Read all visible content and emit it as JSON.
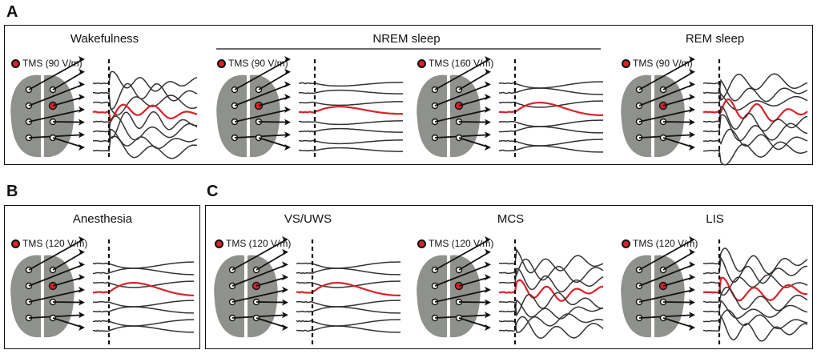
{
  "panels": {
    "A": {
      "letter": "A"
    },
    "B": {
      "letter": "B"
    },
    "C": {
      "letter": "C"
    }
  },
  "group_label": "NREM sleep",
  "conditions": [
    {
      "title": "Wakefulness",
      "tms": "TMS (90 V/m)",
      "pattern": "complex",
      "seed": 3
    },
    {
      "title": "",
      "tms": "TMS (90 V/m)",
      "pattern": "simple_small",
      "seed": 5
    },
    {
      "title": "",
      "tms": "TMS (160 V/m)",
      "pattern": "simple_large",
      "seed": 7
    },
    {
      "title": "REM sleep",
      "tms": "TMS (90 V/m)",
      "pattern": "complex",
      "seed": 11
    },
    {
      "title": "Anesthesia",
      "tms": "TMS (120 V/m)",
      "pattern": "simple_large",
      "seed": 13
    },
    {
      "title": "VS/UWS",
      "tms": "TMS (120 V/m)",
      "pattern": "simple_large",
      "seed": 17
    },
    {
      "title": "MCS",
      "tms": "TMS (120 V/m)",
      "pattern": "complex",
      "seed": 19
    },
    {
      "title": "LIS",
      "tms": "TMS (120 V/m)",
      "pattern": "complex",
      "seed": 23
    }
  ],
  "colors": {
    "brain": "#8f918c",
    "stim": "#d8232a",
    "trace": "#333333",
    "frame": "#111111"
  }
}
